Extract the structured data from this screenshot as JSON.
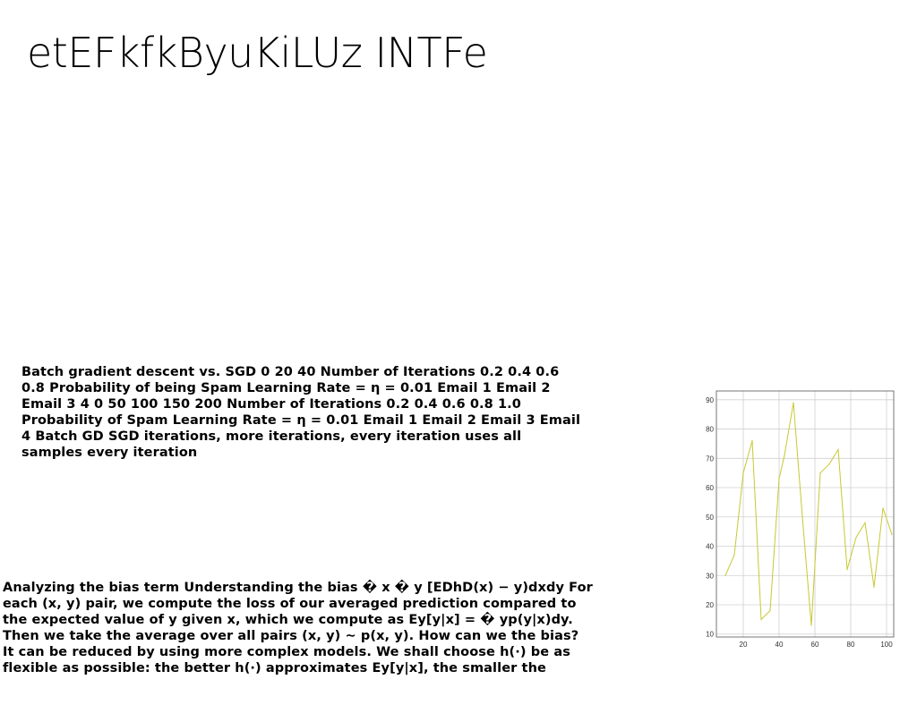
{
  "slide": {
    "title": "etEFkfkByuKiLUz INTFe",
    "paragraph_1": "Batch gradient descent vs. SGD 0 20 40 Number of Iterations 0.2 0.4 0.6 0.8 Probability of being Spam Learning Rate = η = 0.01 Email 1 Email 2 Email 3 4 0 50 100 150 200 Number of Iterations 0.2 0.4 0.6 0.8 1.0 Probability of Spam Learning Rate = η = 0.01 Email 1 Email 2 Email 3 Email 4 Batch GD SGD iterations, more iterations, every iteration uses all samples every iteration",
    "paragraph_2": "Analyzing the bias term Understanding the bias � x � y [EDhD(x) − y)dxdy For each (x, y) pair, we compute the loss of our averaged prediction compared to the expected value of y given x, which we compute as Ey[y|x] = � yp(y|x)dy. Then we take the average over all pairs (x, y) ∼ p(x, y). How can we the bias? It can be reduced by using more complex models. We shall choose h(·) be as flexible as possible: the better h(·) approximates Ey[y|x], the smaller the"
  },
  "chart_data": {
    "type": "line",
    "xlim": [
      5,
      104
    ],
    "ylim": [
      9,
      93
    ],
    "xticks": [
      20,
      40,
      60,
      80,
      100
    ],
    "yticks": [
      10,
      20,
      30,
      40,
      50,
      60,
      70,
      80,
      90
    ],
    "grid": true,
    "line_color": "#c8c832",
    "x": [
      10,
      15,
      20,
      25,
      30,
      35,
      40,
      43,
      48,
      53,
      58,
      63,
      68,
      73,
      78,
      83,
      88,
      93,
      98,
      103
    ],
    "y": [
      30,
      37,
      65,
      76,
      15,
      18,
      63,
      71,
      89,
      50,
      13,
      65,
      68,
      73,
      32,
      43,
      48,
      26,
      53,
      44
    ]
  }
}
